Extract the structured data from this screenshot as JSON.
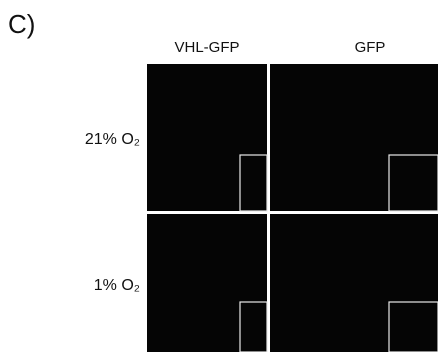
{
  "panel_label": "C)",
  "columns": [
    "VHL-GFP",
    "GFP"
  ],
  "rows": [
    "21% O₂",
    "1% O₂"
  ]
}
